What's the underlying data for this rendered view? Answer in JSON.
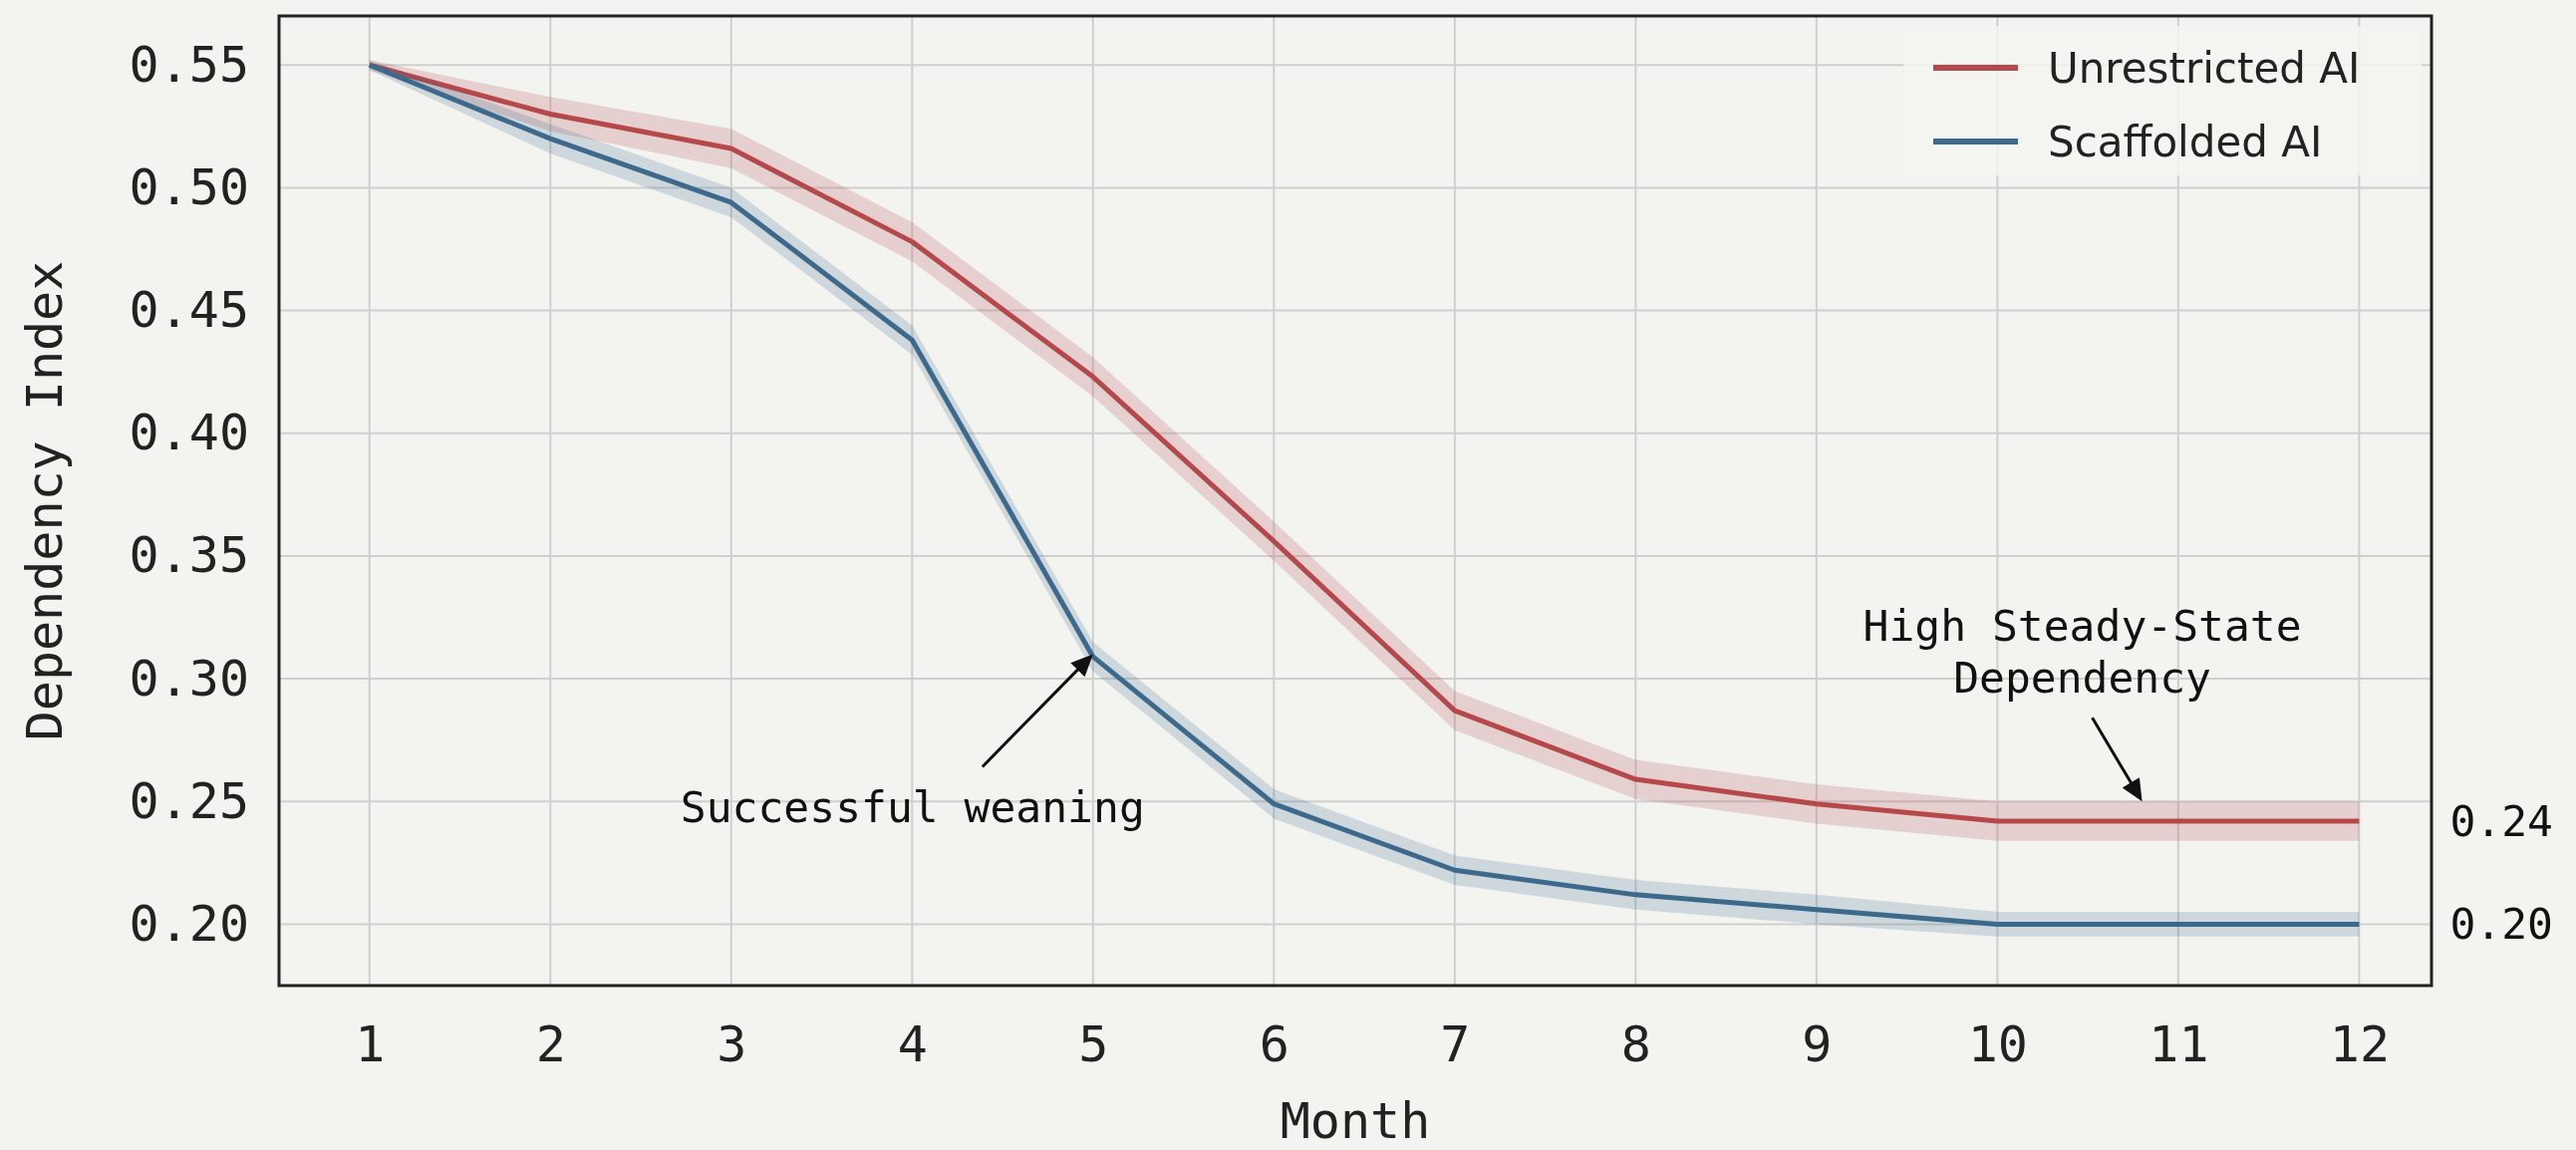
{
  "chart_data": {
    "type": "line",
    "xlabel": "Month",
    "ylabel": "Dependency Index",
    "x": [
      1,
      2,
      3,
      4,
      5,
      6,
      7,
      8,
      9,
      10,
      11,
      12
    ],
    "xlim": [
      0.5,
      12.4
    ],
    "ylim": [
      0.175,
      0.57
    ],
    "xticks": [
      1,
      2,
      3,
      4,
      5,
      6,
      7,
      8,
      9,
      10,
      11,
      12
    ],
    "yticks": [
      {
        "value": 0.2,
        "label": "0.20"
      },
      {
        "value": 0.25,
        "label": "0.25"
      },
      {
        "value": 0.3,
        "label": "0.30"
      },
      {
        "value": 0.35,
        "label": "0.35"
      },
      {
        "value": 0.4,
        "label": "0.40"
      },
      {
        "value": 0.45,
        "label": "0.45"
      },
      {
        "value": 0.5,
        "label": "0.50"
      },
      {
        "value": 0.55,
        "label": "0.55"
      }
    ],
    "grid": true,
    "legend": "top right",
    "marker": "none",
    "line_style": "solid",
    "series": [
      {
        "name": "Unrestricted AI",
        "color": "#b5484b",
        "values": [
          0.55,
          0.53,
          0.516,
          0.478,
          0.423,
          0.356,
          0.287,
          0.259,
          0.249,
          0.242,
          0.242,
          0.242
        ],
        "lower": [
          0.548,
          0.523,
          0.508,
          0.47,
          0.415,
          0.348,
          0.279,
          0.251,
          0.241,
          0.234,
          0.234,
          0.234
        ],
        "upper": [
          0.552,
          0.537,
          0.524,
          0.486,
          0.431,
          0.364,
          0.295,
          0.267,
          0.257,
          0.25,
          0.25,
          0.25
        ]
      },
      {
        "name": "Scaffolded AI",
        "color": "#3d6a8c",
        "values": [
          0.55,
          0.52,
          0.494,
          0.438,
          0.309,
          0.249,
          0.222,
          0.212,
          0.206,
          0.2,
          0.2,
          0.2
        ],
        "lower": [
          0.548,
          0.514,
          0.488,
          0.432,
          0.303,
          0.243,
          0.216,
          0.206,
          0.2,
          0.195,
          0.195,
          0.195
        ],
        "upper": [
          0.552,
          0.526,
          0.5,
          0.444,
          0.315,
          0.255,
          0.228,
          0.218,
          0.212,
          0.205,
          0.205,
          0.205
        ]
      }
    ],
    "annotations": [
      {
        "text": "Successful weaning",
        "x": 5,
        "y": 0.31
      },
      {
        "text": "High Steady-State Dependency",
        "x": 10.8,
        "y": 0.25
      },
      {
        "text": "0.24",
        "x": 12,
        "y": 0.242
      },
      {
        "text": "0.20",
        "x": 12,
        "y": 0.2
      }
    ]
  }
}
